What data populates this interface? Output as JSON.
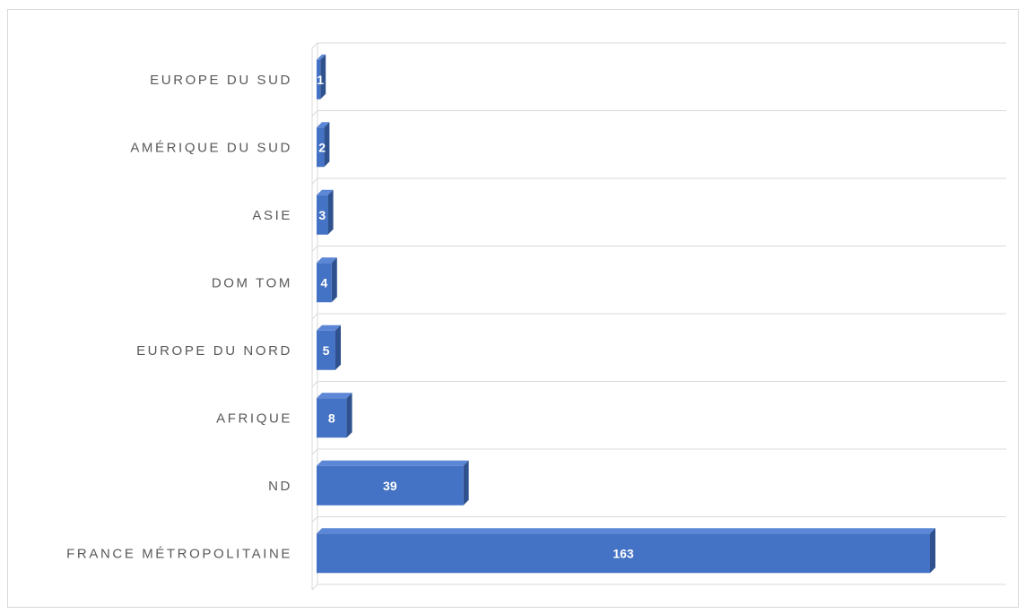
{
  "chart_data": {
    "type": "bar",
    "orientation": "horizontal",
    "style": "3d",
    "categories": [
      "EUROPE DU SUD",
      "AMÉRIQUE DU SUD",
      "ASIE",
      "DOM TOM",
      "EUROPE DU NORD",
      "AFRIQUE",
      "ND",
      "FRANCE MÉTROPOLITAINE"
    ],
    "values": [
      1,
      2,
      3,
      4,
      5,
      8,
      39,
      163
    ],
    "data_labels": [
      "1",
      "2",
      "3",
      "4",
      "5",
      "8",
      "39",
      "163"
    ],
    "title": "",
    "xlabel": "",
    "ylabel": "",
    "xlim": [
      0,
      180
    ],
    "grid": true,
    "legend": "none",
    "colors": {
      "bar_front": "#4472c4",
      "bar_side": "#2f528f",
      "bar_top": "#5b87d6",
      "gridline": "#d9d9d9",
      "label": "#595959",
      "data_label": "#ffffff"
    }
  }
}
